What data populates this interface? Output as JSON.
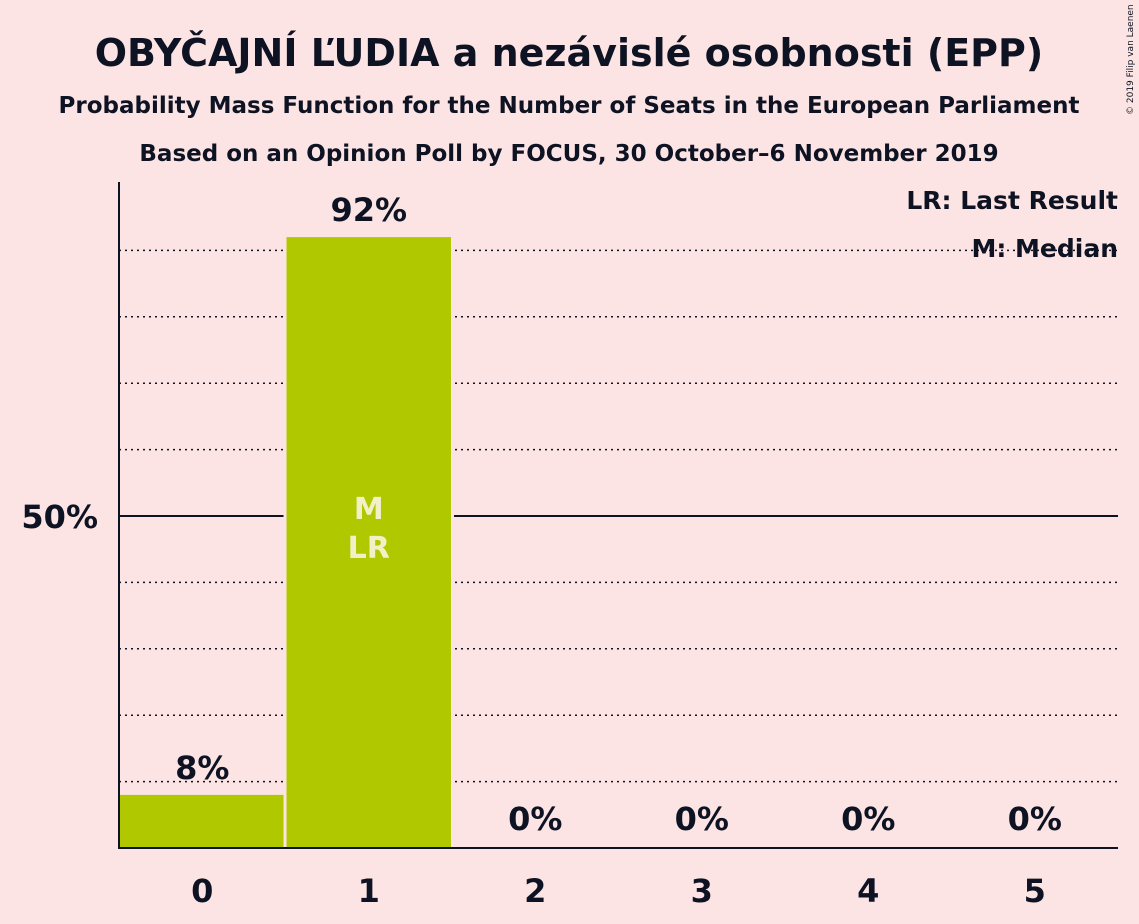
{
  "chart_data": {
    "type": "bar",
    "title": "OBYČAJNÍ ĽUDIA a nezávislé osobnosti (EPP)",
    "subtitle": "Probability Mass Function for the Number of Seats in the European Parliament",
    "subtitle2": "Based on an Opinion Poll by FOCUS, 30 October–6 November 2019",
    "categories": [
      "0",
      "1",
      "2",
      "3",
      "4",
      "5"
    ],
    "values": [
      8,
      92,
      0,
      0,
      0,
      0
    ],
    "value_labels": [
      "8%",
      "92%",
      "0%",
      "0%",
      "0%",
      "0%"
    ],
    "ylim": [
      0,
      100
    ],
    "yticks": [
      {
        "value": 50,
        "label": "50%"
      }
    ],
    "gridlines": [
      10,
      20,
      30,
      40,
      60,
      70,
      80,
      90
    ],
    "grid": true,
    "bar_color": "#b0c800",
    "median_index": 1,
    "last_result_index": 1,
    "median_marker": "M",
    "last_result_marker": "LR",
    "legend": {
      "placement": "top-right",
      "items": [
        "LR: Last Result",
        "M: Median"
      ]
    },
    "credit": "© 2019 Filip van Laenen"
  }
}
